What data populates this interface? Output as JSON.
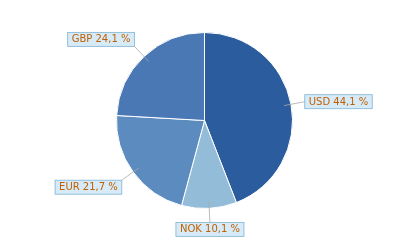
{
  "chart_data": {
    "type": "pie",
    "categories": [
      "USD 44,1 %",
      "NOK 10,1 %",
      "EUR 21,7 %",
      "GBP 24,1 %"
    ],
    "values": [
      44.1,
      10.1,
      21.7,
      24.1
    ],
    "colors": [
      "#2B5C9E",
      "#93BCD9",
      "#5B8BBF",
      "#4A78B5"
    ]
  }
}
